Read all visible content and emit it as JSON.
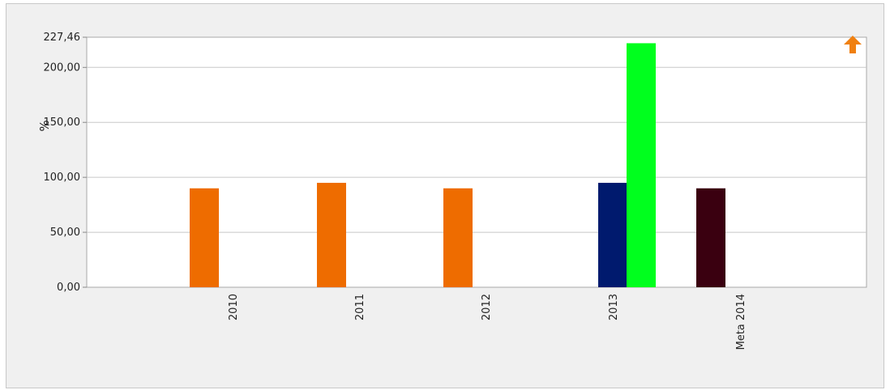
{
  "chart_data": {
    "type": "bar",
    "title": "",
    "xlabel": "",
    "ylabel": "%",
    "ylim": [
      0,
      227.46
    ],
    "yticks": [
      "0,00",
      "50,00",
      "100,00",
      "150,00",
      "200,00",
      "227,46"
    ],
    "ytick_values": [
      0,
      50,
      100,
      150,
      200,
      227.46
    ],
    "grid": true,
    "categories": [
      "2010",
      "2011",
      "2012",
      "2013",
      "Meta 2014"
    ],
    "bars": [
      {
        "category": "2010",
        "value": 90,
        "color": "#ee6c00"
      },
      {
        "category": "2011",
        "value": 95,
        "color": "#ee6c00"
      },
      {
        "category": "2012",
        "value": 90,
        "color": "#ee6c00"
      },
      {
        "category": "2013",
        "value": 95,
        "color": "#001a6e"
      },
      {
        "category": "2013",
        "value": 222,
        "color": "#00ff1e"
      },
      {
        "category": "Meta 2014",
        "value": 90,
        "color": "#3a0010"
      }
    ]
  },
  "icons": {
    "corner_arrow": {
      "name": "arrow-up-icon",
      "color": "#f08010"
    }
  }
}
